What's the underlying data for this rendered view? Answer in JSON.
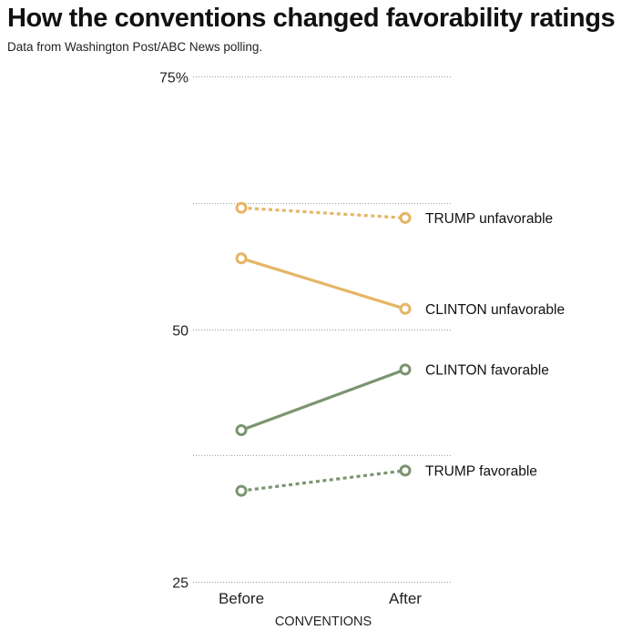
{
  "chart_data": {
    "type": "line",
    "title": "How the conventions changed favorability ratings",
    "subtitle": "Data from Washington Post/ABC News polling.",
    "xlabel": "CONVENTIONS",
    "ylabel": "",
    "categories": [
      "Before",
      "After"
    ],
    "ylim": [
      25,
      75
    ],
    "y_ticks": [
      25,
      37.5,
      50,
      62.5,
      75
    ],
    "y_tick_labels": [
      "25",
      "",
      "50",
      "",
      "75%"
    ],
    "grid": true,
    "legend": "direct labels at right end of lines",
    "series": [
      {
        "name": "TRUMP unfavorable",
        "values": [
          62,
          61
        ],
        "color": "#e6b565",
        "style": "dotted"
      },
      {
        "name": "CLINTON unfavorable",
        "values": [
          57,
          52
        ],
        "color": "#e6b565",
        "style": "solid"
      },
      {
        "name": "CLINTON favorable",
        "values": [
          40,
          46
        ],
        "color": "#7a9470",
        "style": "solid"
      },
      {
        "name": "TRUMP favorable",
        "values": [
          34,
          36
        ],
        "color": "#7a9470",
        "style": "dotted"
      }
    ]
  }
}
